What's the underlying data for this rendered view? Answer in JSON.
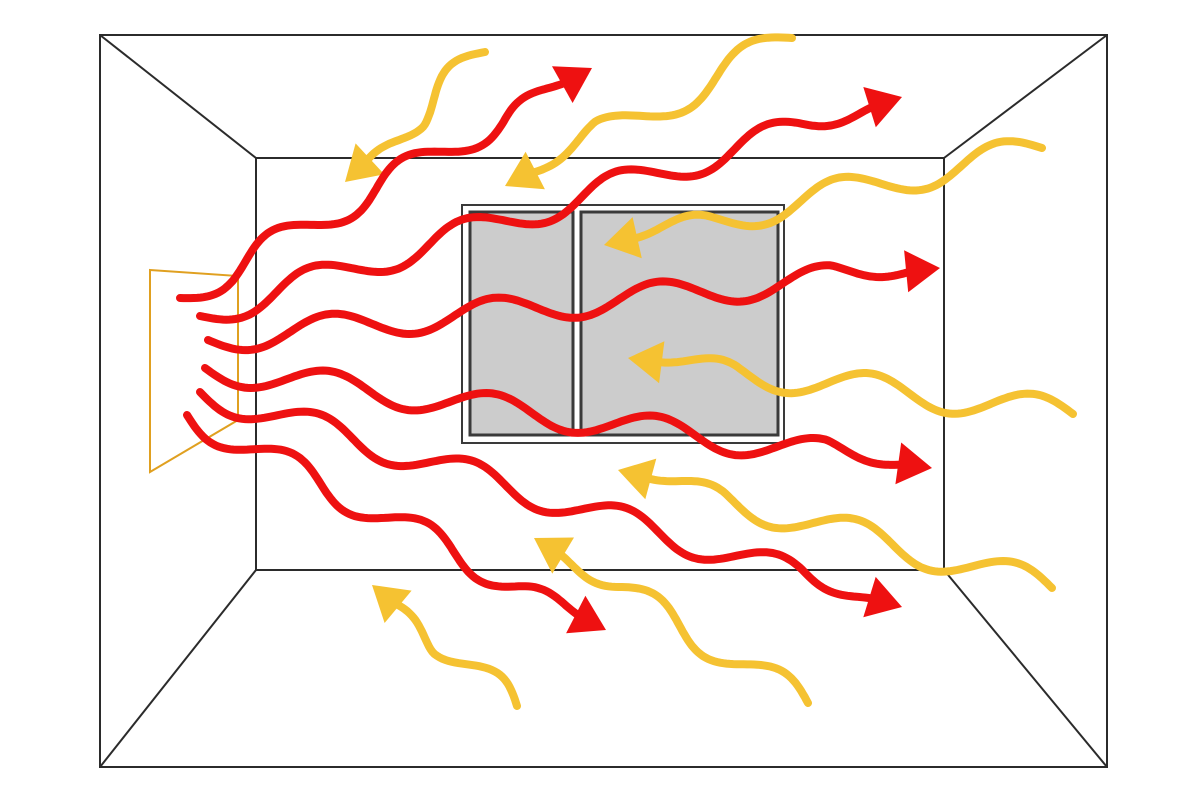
{
  "diagram": {
    "colors": {
      "background": "#ffffff",
      "room_outline": "#2b2b2b",
      "window_frame": "#3a3a3a",
      "window_glass": "#cccccc",
      "heater_outline": "#e0a020",
      "heat_waves": "#ee1111",
      "cold_waves": "#f5c232"
    },
    "elements": {
      "room": "room-outline",
      "window": "window",
      "heater": "heater-panel",
      "outgoing_waves": "heat-wave-arrow",
      "incoming_waves": "cold-wave-arrow"
    }
  }
}
